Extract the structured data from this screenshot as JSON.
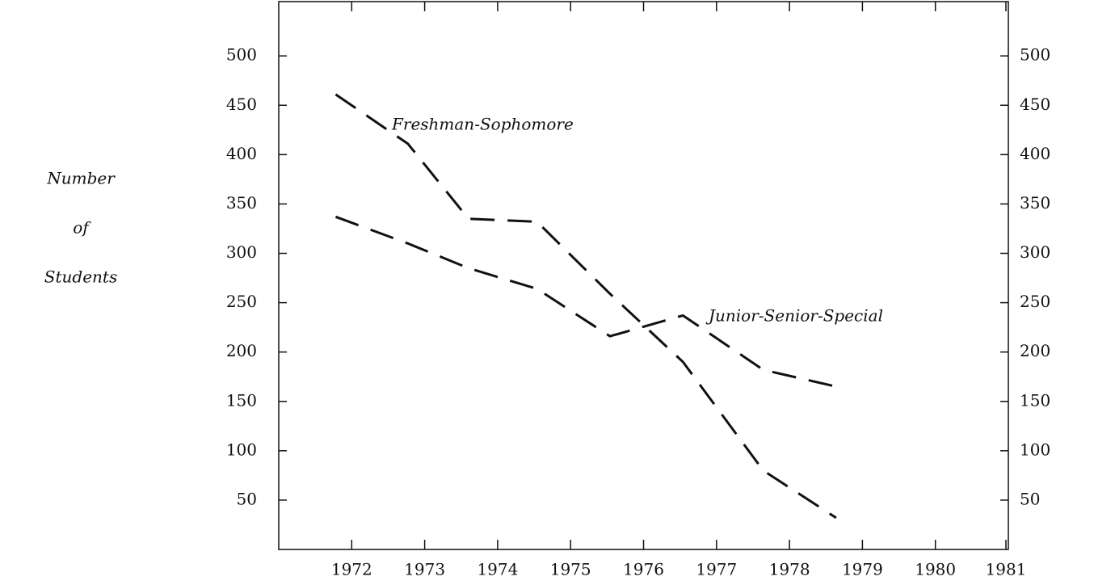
{
  "chart_data": {
    "type": "line",
    "ylabel": [
      "Number",
      "of",
      "Students"
    ],
    "x": [
      1971.78,
      1972.77,
      1973.6,
      1974.54,
      1975.54,
      1976.54,
      1977.64,
      1978.64
    ],
    "series": [
      {
        "name": "Freshman-Sophomore",
        "color": "#111111",
        "values": [
          461,
          411,
          335,
          332,
          259,
          190,
          80,
          32
        ]
      },
      {
        "name": "Junior-Senior-Special",
        "color": "#111111",
        "values": [
          337,
          310,
          285,
          264,
          216,
          237,
          182,
          165
        ]
      }
    ],
    "xlim": [
      1971,
      1981
    ],
    "xticks": [
      1972,
      1973,
      1974,
      1975,
      1976,
      1977,
      1978,
      1979,
      1980,
      1981
    ],
    "ylim": [
      0,
      555
    ],
    "yticks": [
      50,
      100,
      150,
      200,
      250,
      300,
      350,
      400,
      450,
      500
    ],
    "y2lim": [
      0,
      555
    ],
    "y2ticks": [
      50,
      100,
      150,
      200,
      250,
      300,
      350,
      400,
      450,
      500
    ],
    "line_style": "dashed",
    "grid": false
  }
}
